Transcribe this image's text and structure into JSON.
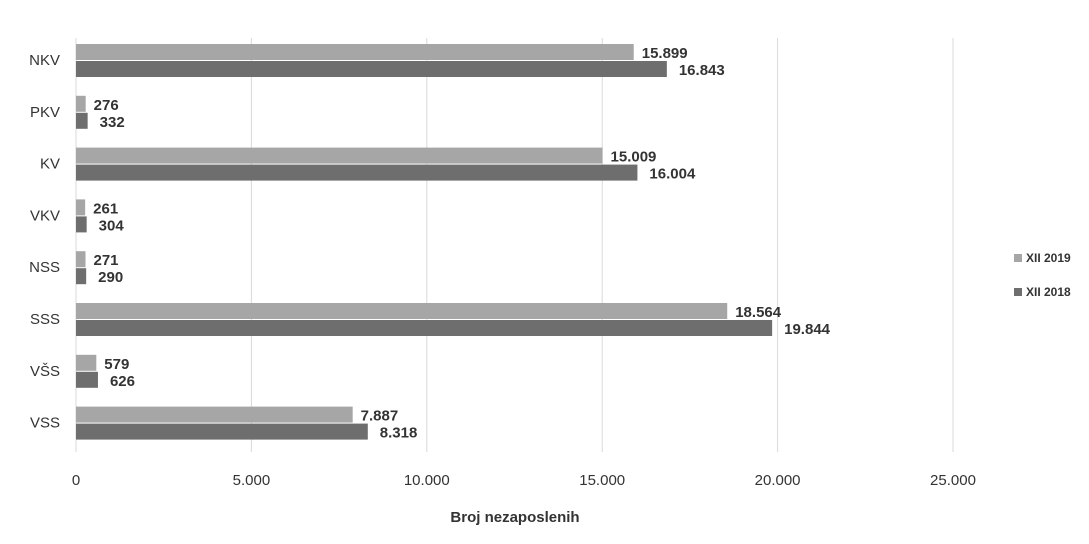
{
  "chart_data": {
    "type": "bar",
    "orientation": "horizontal",
    "categories": [
      "NKV",
      "PKV",
      "KV",
      "VKV",
      "NSS",
      "SSS",
      "VŠS",
      "VSS"
    ],
    "series": [
      {
        "name": "XII 2019",
        "values": [
          15899,
          276,
          15009,
          261,
          271,
          18564,
          579,
          7887
        ],
        "value_labels": [
          "15.899",
          "276",
          "15.009",
          "261",
          "271",
          "18.564",
          "579",
          "7.887"
        ],
        "color": "#a6a6a6"
      },
      {
        "name": "XII 2018",
        "values": [
          16843,
          332,
          16004,
          304,
          290,
          19844,
          626,
          8318
        ],
        "value_labels": [
          "16.843",
          "332",
          "16.004",
          "304",
          "290",
          "19.844",
          "626",
          "8.318"
        ],
        "color": "#6e6e6e"
      }
    ],
    "xlabel": "Broj nezaposlenih",
    "ylabel": "",
    "xlim": [
      0,
      25000
    ],
    "x_ticks": [
      0,
      5000,
      10000,
      15000,
      20000,
      25000
    ],
    "x_tick_labels": [
      "0",
      "5.000",
      "10.000",
      "15.000",
      "20.000",
      "25.000"
    ],
    "grid": true,
    "legend_position": "right"
  }
}
